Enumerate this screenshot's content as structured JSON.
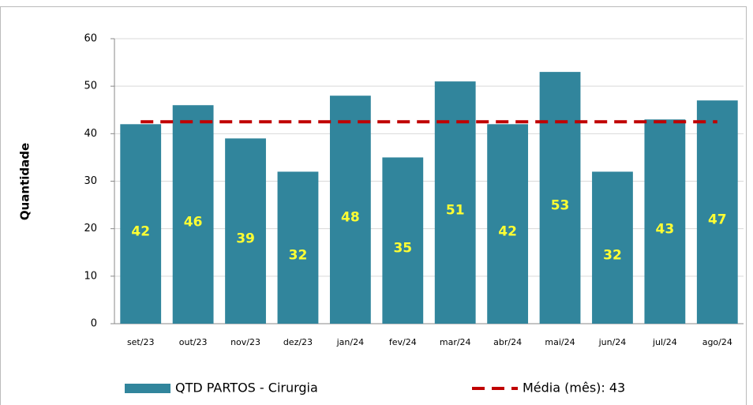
{
  "chart_data": {
    "type": "bar",
    "y_label": "Quantidade",
    "categories": [
      "set/23",
      "out/23",
      "nov/23",
      "dez/23",
      "jan/24",
      "fev/24",
      "mar/24",
      "abr/24",
      "mai/24",
      "jun/24",
      "jul/24",
      "ago/24"
    ],
    "series": [
      {
        "name": "QTD PARTOS - Cirurgia",
        "color": "#31859c",
        "values": [
          42,
          46,
          39,
          32,
          48,
          35,
          51,
          42,
          53,
          32,
          43,
          47
        ]
      },
      {
        "name": "Média (mês): 43",
        "type": "line",
        "color": "#c00000",
        "values": [
          42.5,
          42.5,
          42.5,
          42.5,
          42.5,
          42.5,
          42.5,
          42.5,
          42.5,
          42.5,
          42.5,
          42.5
        ]
      }
    ],
    "ylim": [
      0,
      60
    ],
    "yticks": [
      0,
      10,
      20,
      30,
      40,
      50,
      60
    ],
    "grid": true,
    "legend": "bottom"
  }
}
